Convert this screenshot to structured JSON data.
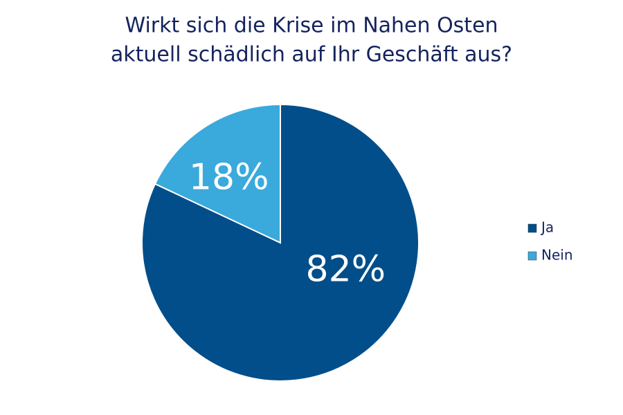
{
  "chart_data": {
    "type": "pie",
    "title": [
      "Wirkt sich die Krise im Nahen Osten",
      "aktuell schädlich auf Ihr Geschäft aus?"
    ],
    "categories": [
      "Ja",
      "Nein"
    ],
    "values": [
      82,
      18
    ],
    "value_labels": [
      "82%",
      "18%"
    ],
    "colors": [
      "#014e8a",
      "#3aa9dc"
    ],
    "legend": "right"
  }
}
